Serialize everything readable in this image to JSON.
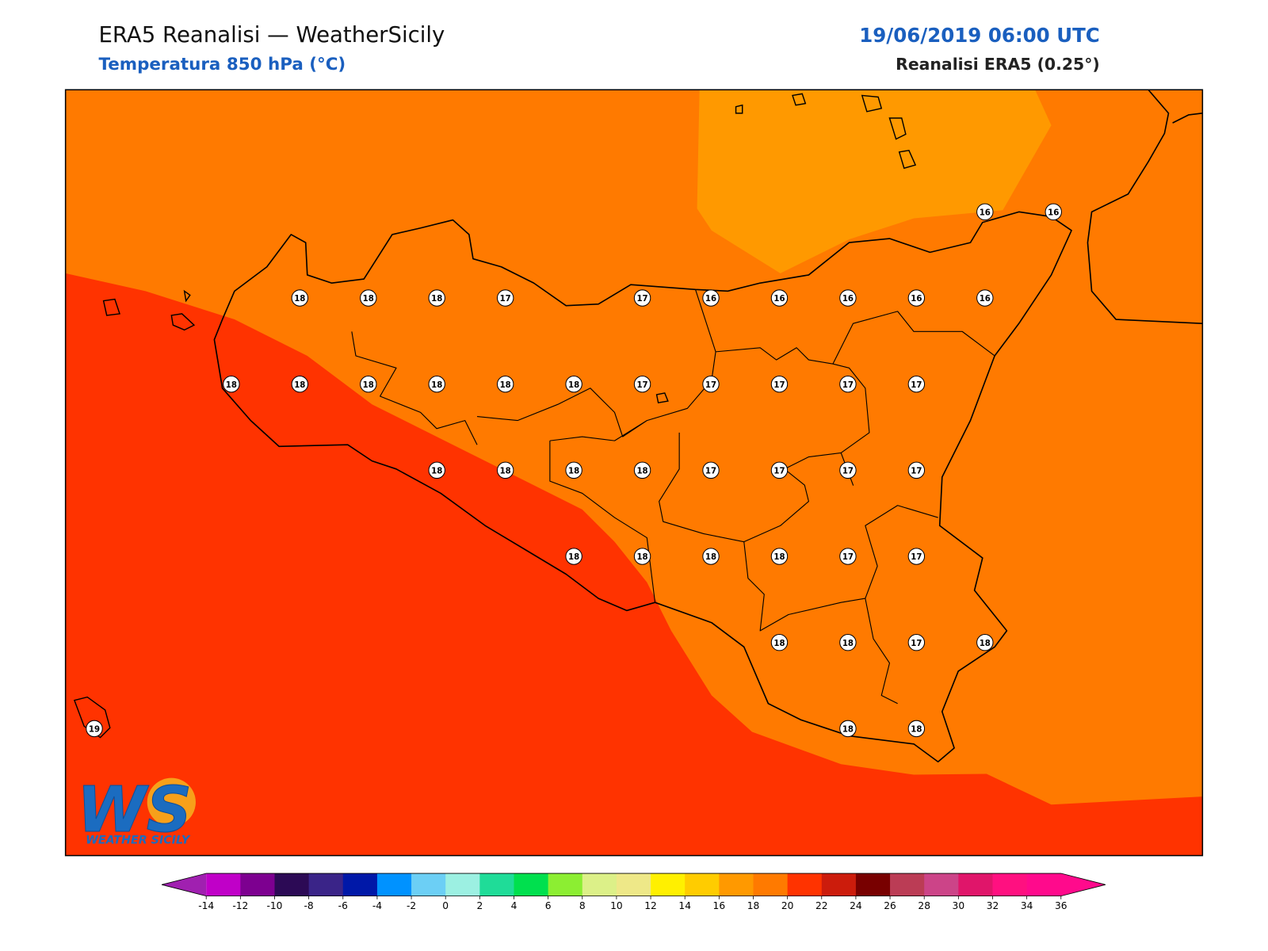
{
  "header": {
    "title": "ERA5 Reanalisi — WeatherSicily",
    "subtitle": "Temperatura 850 hPa (°C)",
    "datetime": "19/06/2019 06:00 UTC",
    "source": "Reanalisi ERA5 (0.25°)"
  },
  "logo": {
    "mark": "WS",
    "text": "WEATHER SICILY"
  },
  "field_levels": [
    15,
    16,
    17
  ],
  "grid_values": [
    [
      null,
      null,
      null,
      null,
      null,
      null,
      null,
      null,
      null,
      null,
      null,
      null,
      null,
      16,
      16
    ],
    [
      null,
      null,
      null,
      18,
      18,
      18,
      17,
      null,
      17,
      16,
      16,
      16,
      16,
      16,
      null
    ],
    [
      null,
      null,
      18,
      18,
      18,
      18,
      18,
      18,
      17,
      17,
      17,
      17,
      17,
      null,
      null
    ],
    [
      null,
      null,
      null,
      null,
      null,
      18,
      18,
      18,
      18,
      17,
      17,
      17,
      17,
      null,
      null
    ],
    [
      null,
      null,
      null,
      null,
      null,
      null,
      null,
      18,
      18,
      18,
      18,
      17,
      17,
      null,
      null
    ],
    [
      null,
      null,
      null,
      null,
      null,
      null,
      null,
      null,
      null,
      null,
      18,
      18,
      17,
      18,
      null
    ],
    [
      19,
      null,
      null,
      null,
      null,
      null,
      null,
      null,
      null,
      null,
      null,
      18,
      18,
      null,
      null
    ]
  ],
  "colorbar": {
    "ticks": [
      -14,
      -12,
      -10,
      -8,
      -6,
      -4,
      -2,
      0,
      2,
      4,
      6,
      8,
      10,
      12,
      14,
      16,
      18,
      20,
      22,
      24,
      26,
      28,
      30,
      32,
      34,
      36
    ],
    "colors": [
      "#c000c8",
      "#7d0090",
      "#2c0a55",
      "#3a2488",
      "#0018a8",
      "#0092ff",
      "#6ccff5",
      "#9cf0e2",
      "#1fdc98",
      "#00e04e",
      "#8cee32",
      "#dcf088",
      "#eee888",
      "#fff000",
      "#ffcc00",
      "#ff9900",
      "#ff7a00",
      "#ff3300",
      "#cc1c0c",
      "#780000",
      "#bb3c55",
      "#cc4488",
      "#e0156a",
      "#ff1080",
      "#ff0a8c"
    ],
    "under": "#a020b0",
    "over": "#ff0a8c"
  }
}
